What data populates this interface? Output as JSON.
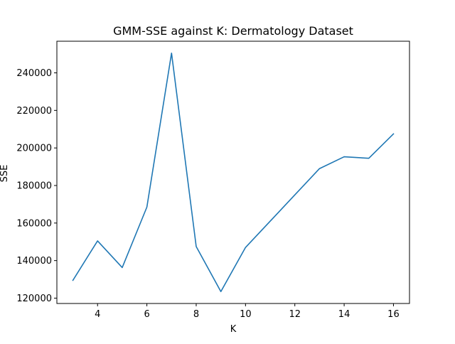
{
  "chart_data": {
    "type": "line",
    "title": "GMM-SSE against K: Dermatology Dataset",
    "xlabel": "K",
    "ylabel": "SSE",
    "x": [
      3,
      4,
      5,
      6,
      7,
      8,
      9,
      10,
      11,
      12,
      13,
      14,
      15,
      16
    ],
    "series": [
      {
        "values": [
          129500,
          150500,
          136300,
          168500,
          250500,
          147500,
          123500,
          147000,
          161000,
          175000,
          189000,
          195300,
          194500,
          207500
        ],
        "color": "#1f77b4"
      }
    ],
    "xlim": [
      2.35,
      16.65
    ],
    "ylim": [
      117150,
      256850
    ],
    "xticks": [
      4,
      6,
      8,
      10,
      12,
      14,
      16
    ],
    "xtick_labels": [
      "4",
      "6",
      "8",
      "10",
      "12",
      "14",
      "16"
    ],
    "yticks": [
      120000,
      140000,
      160000,
      180000,
      200000,
      220000,
      240000
    ],
    "ytick_labels": [
      "120000",
      "140000",
      "160000",
      "180000",
      "200000",
      "220000",
      "240000"
    ],
    "grid": false,
    "legend": false
  }
}
